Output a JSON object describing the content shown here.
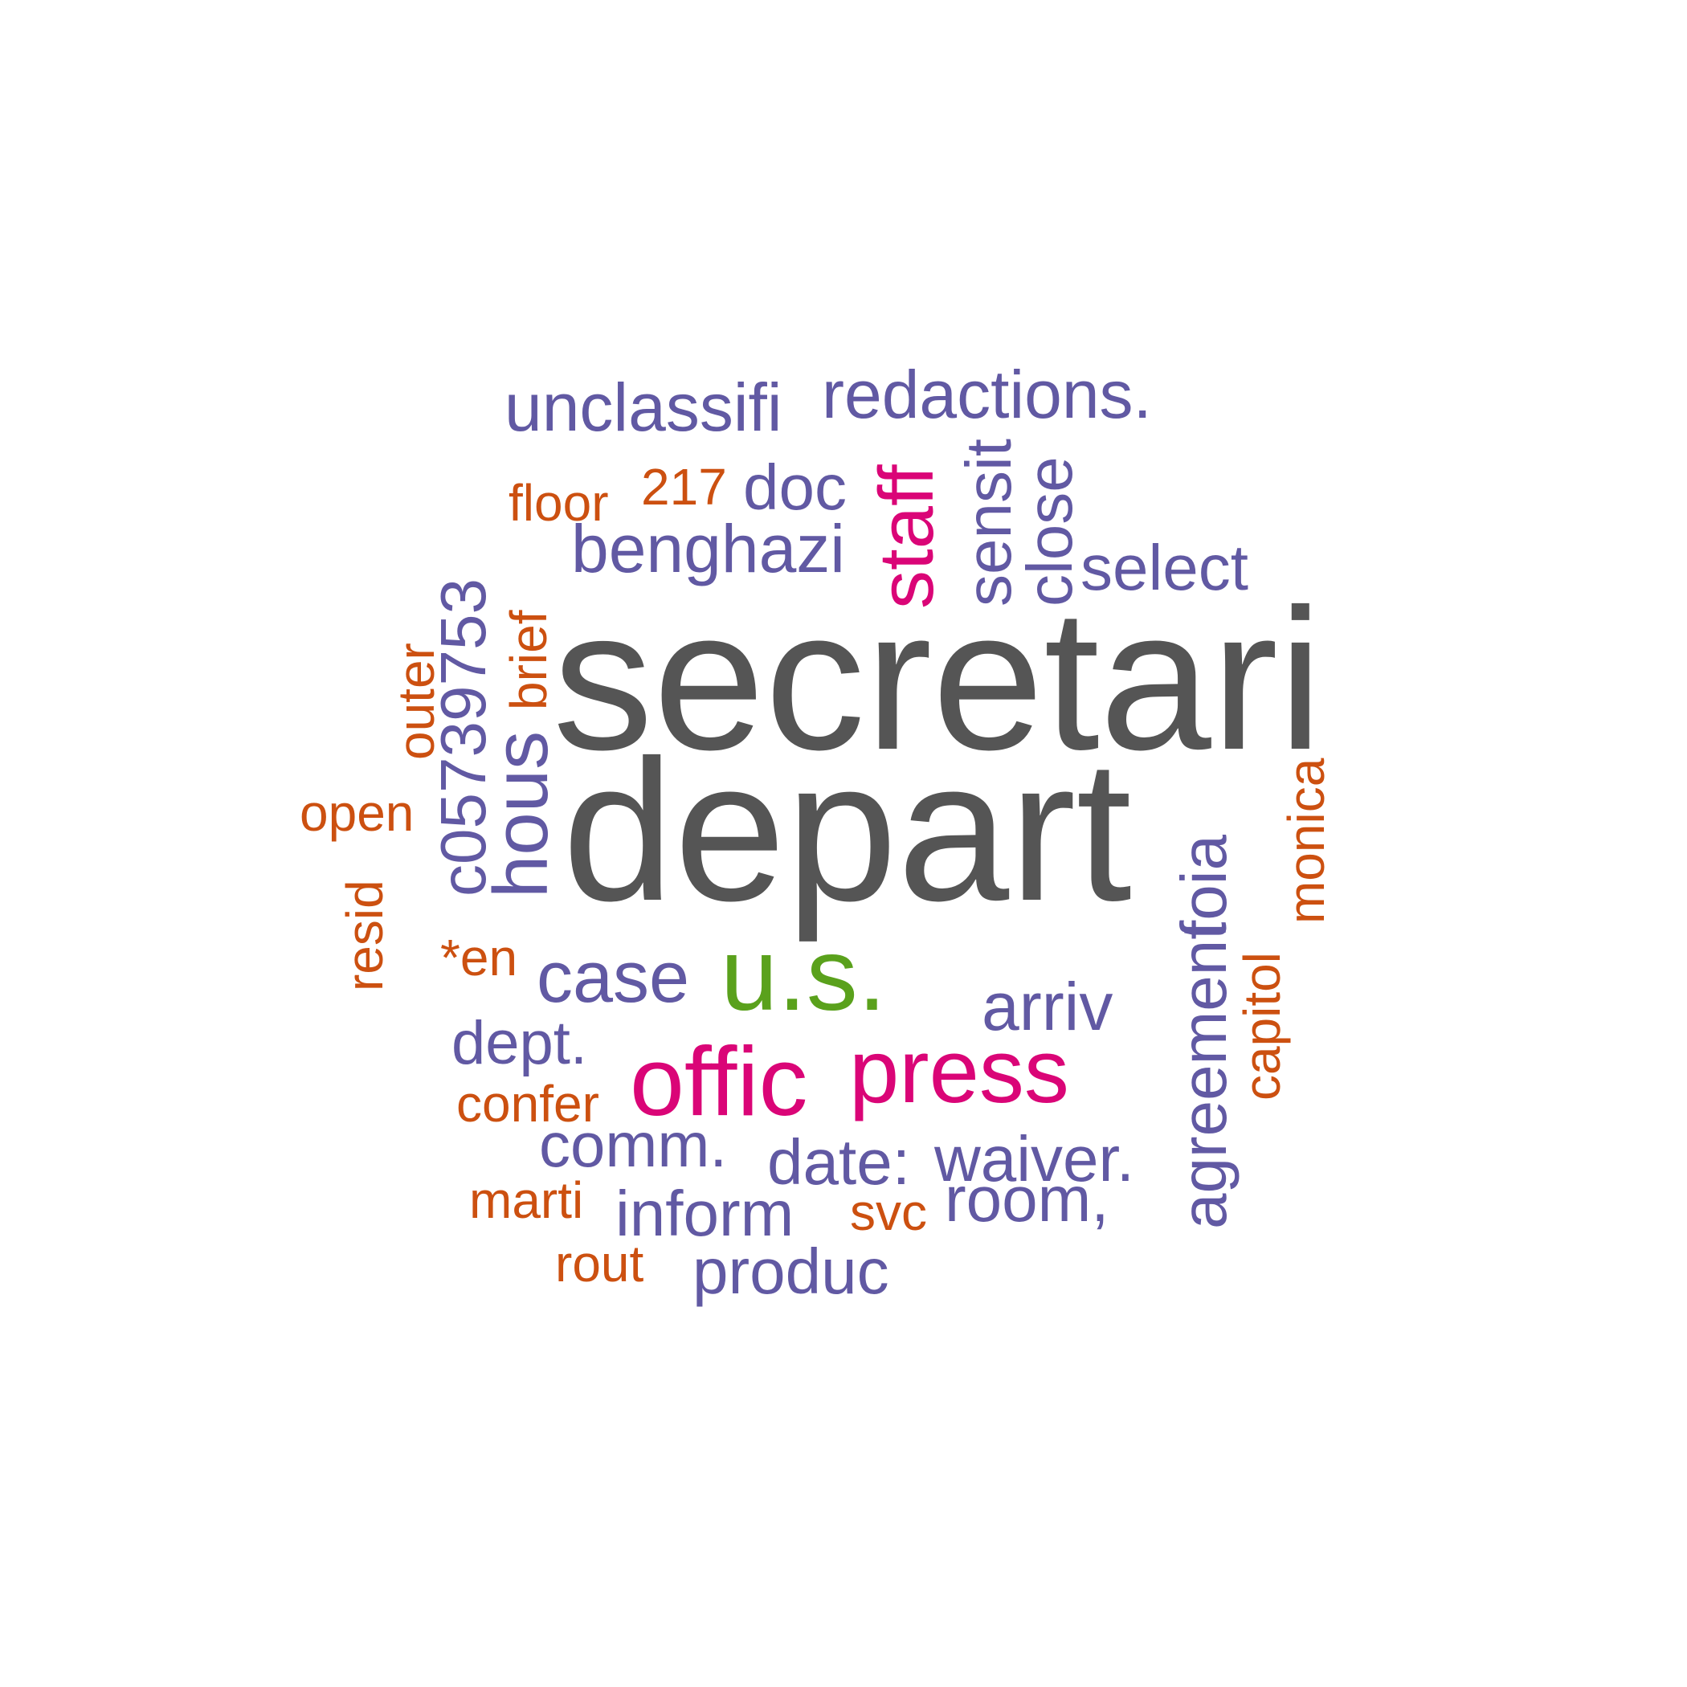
{
  "colors": {
    "dark": "#555555",
    "purple": "#6159a3",
    "magenta": "#da0577",
    "green": "#5aa11c",
    "orange": "#cc5010"
  },
  "words": [
    {
      "text": "secretari",
      "color": "dark"
    },
    {
      "text": "depart",
      "color": "dark"
    },
    {
      "text": "u.s.",
      "color": "green"
    },
    {
      "text": "offic",
      "color": "magenta"
    },
    {
      "text": "press",
      "color": "magenta"
    },
    {
      "text": "staff",
      "color": "magenta"
    },
    {
      "text": "unclassifi",
      "color": "purple"
    },
    {
      "text": "redactions.",
      "color": "purple"
    },
    {
      "text": "doc",
      "color": "purple"
    },
    {
      "text": "benghazi",
      "color": "purple"
    },
    {
      "text": "sensit",
      "color": "purple"
    },
    {
      "text": "close",
      "color": "purple"
    },
    {
      "text": "select",
      "color": "purple"
    },
    {
      "text": "c05739753",
      "color": "purple"
    },
    {
      "text": "hous",
      "color": "purple"
    },
    {
      "text": "case",
      "color": "purple"
    },
    {
      "text": "arriv",
      "color": "purple"
    },
    {
      "text": "agreement",
      "color": "purple"
    },
    {
      "text": "foia",
      "color": "purple"
    },
    {
      "text": "dept.",
      "color": "purple"
    },
    {
      "text": "comm.",
      "color": "purple"
    },
    {
      "text": "date:",
      "color": "purple"
    },
    {
      "text": "waiver.",
      "color": "purple"
    },
    {
      "text": "inform",
      "color": "purple"
    },
    {
      "text": "room,",
      "color": "purple"
    },
    {
      "text": "produc",
      "color": "purple"
    },
    {
      "text": "floor",
      "color": "orange"
    },
    {
      "text": "217",
      "color": "orange"
    },
    {
      "text": "brief",
      "color": "orange"
    },
    {
      "text": "outer",
      "color": "orange"
    },
    {
      "text": "open",
      "color": "orange"
    },
    {
      "text": "resid",
      "color": "orange"
    },
    {
      "text": "*en",
      "color": "orange"
    },
    {
      "text": "monica",
      "color": "orange"
    },
    {
      "text": "capitol",
      "color": "orange"
    },
    {
      "text": "confer",
      "color": "orange"
    },
    {
      "text": "marti",
      "color": "orange"
    },
    {
      "text": "svc",
      "color": "orange"
    },
    {
      "text": "rout",
      "color": "orange"
    }
  ]
}
